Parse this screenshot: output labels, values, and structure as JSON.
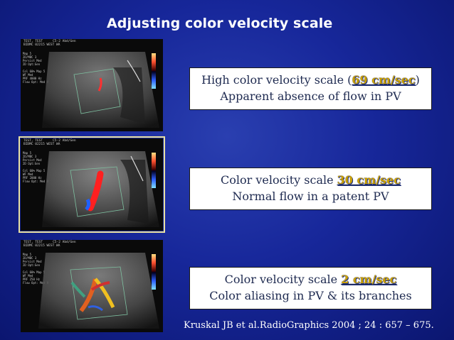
{
  "title": "Adjusting color velocity scale",
  "panels": [
    {
      "line1_pre": "High color velocity scale (",
      "line1_hl": "69 cm/sec",
      "line1_post": ")",
      "line2": "Apparent absence of flow in PV"
    },
    {
      "line1_pre": "Color velocity scale ",
      "line1_hl": "30 cm/sec",
      "line1_post": "",
      "line2": "Normal flow in a patent PV"
    },
    {
      "line1_pre": "Color velocity scale ",
      "line1_hl": "2 cm/sec",
      "line1_post": "",
      "line2": "Color aliasing in PV & its branches"
    }
  ],
  "citation": "Kruskal JB et al.RadioGraphics 2004 ; 24 : 657 – 675.",
  "ultrasound_header": {
    "left": "TEST, TEST",
    "mid": "C5-2 Abd/Gen",
    "facility": "BIDMC 02215 WEST WA"
  },
  "colors": {
    "highlight": "#caa000",
    "background": "#17279a",
    "box_text": "#1e2a50"
  }
}
